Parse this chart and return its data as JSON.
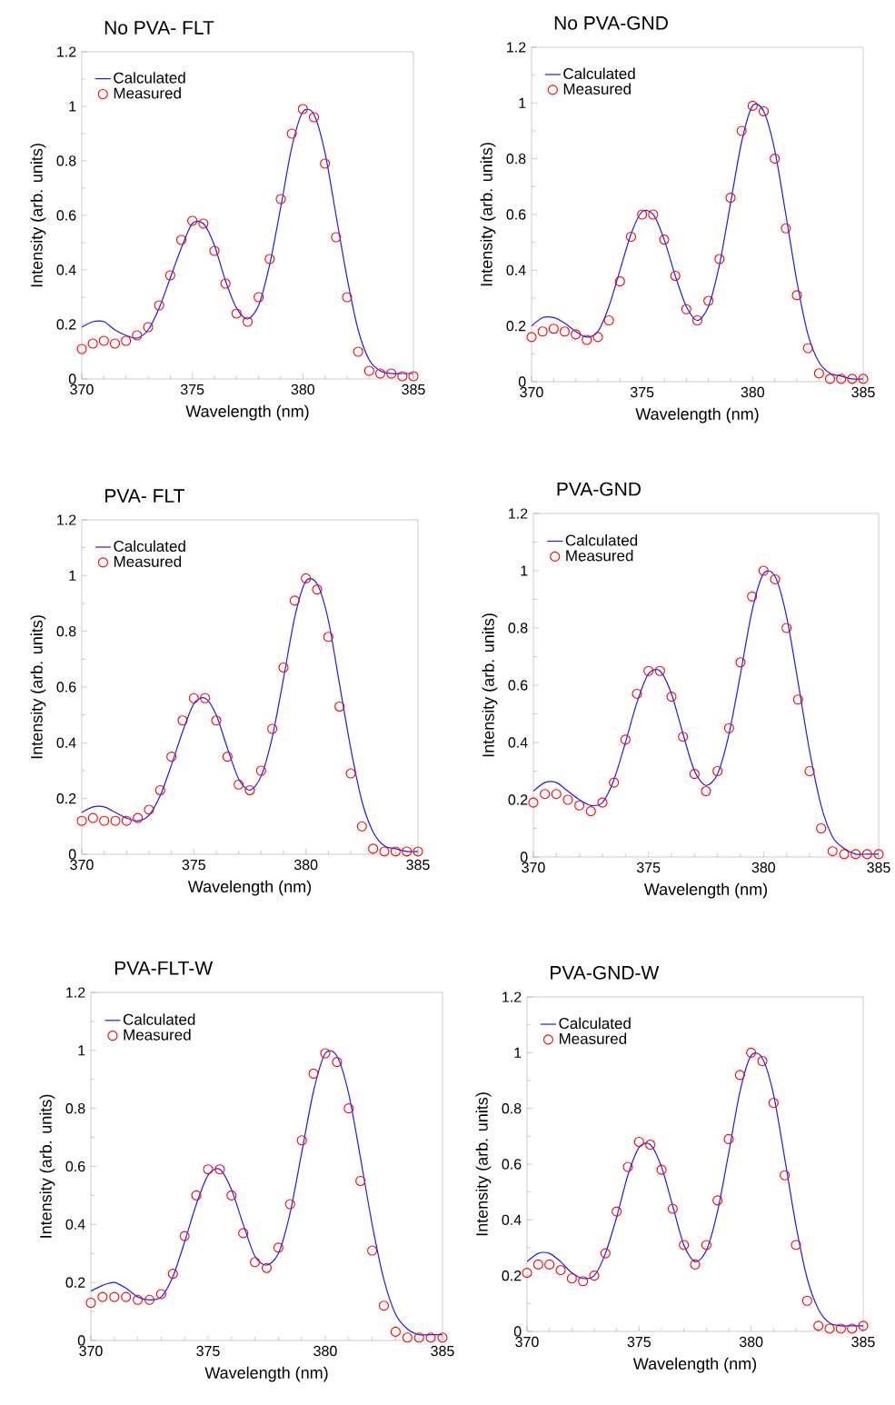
{
  "chart_data": [
    {
      "type": "line",
      "title": "No PVA- FLT",
      "xlabel": "Wavelength (nm)",
      "ylabel": "Intensity (arb. units)",
      "legend": "top left",
      "x": [
        370,
        370.5,
        371,
        371.5,
        372,
        372.5,
        373,
        373.5,
        374,
        374.5,
        375,
        375.5,
        376,
        376.5,
        377,
        377.5,
        378,
        378.5,
        379,
        379.5,
        380,
        380.5,
        381,
        381.5,
        382,
        382.5,
        383,
        383.5,
        384,
        384.5,
        385
      ],
      "xlim": [
        370,
        385
      ],
      "xticks": [
        370,
        375,
        380,
        385
      ],
      "ylim": [
        0,
        1.2
      ],
      "yticks": [
        0,
        0.2,
        0.4,
        0.6,
        0.8,
        1,
        1.2
      ],
      "series": [
        {
          "name": "Calculated",
          "type": "line",
          "marker": "none",
          "color": "#1a1aff",
          "values": [
            0.19,
            0.21,
            0.21,
            0.18,
            0.16,
            0.15,
            0.18,
            0.26,
            0.37,
            0.48,
            0.57,
            0.57,
            0.49,
            0.36,
            0.26,
            0.22,
            0.27,
            0.42,
            0.63,
            0.85,
            0.98,
            0.97,
            0.83,
            0.6,
            0.37,
            0.18,
            0.07,
            0.03,
            0.02,
            0.02,
            0.02
          ]
        },
        {
          "name": "Measured",
          "type": "scatter",
          "marker": "circle",
          "color": "#ff0000",
          "values": [
            0.11,
            0.13,
            0.14,
            0.13,
            0.14,
            0.16,
            0.19,
            0.27,
            0.38,
            0.51,
            0.58,
            0.57,
            0.47,
            0.35,
            0.24,
            0.21,
            0.3,
            0.44,
            0.66,
            0.9,
            0.99,
            0.96,
            0.79,
            0.52,
            0.3,
            0.1,
            0.03,
            0.02,
            0.02,
            0.01,
            0.01
          ]
        }
      ]
    },
    {
      "type": "line",
      "title": "No PVA-GND",
      "xlabel": "Wavelength (nm)",
      "ylabel": "Intensity (arb. units)",
      "legend": "top left",
      "x": [
        370,
        370.5,
        371,
        371.5,
        372,
        372.5,
        373,
        373.5,
        374,
        374.5,
        375,
        375.5,
        376,
        376.5,
        377,
        377.5,
        378,
        378.5,
        379,
        379.5,
        380,
        380.5,
        381,
        381.5,
        382,
        382.5,
        383,
        383.5,
        384,
        384.5,
        385
      ],
      "xlim": [
        370,
        385
      ],
      "xticks": [
        370,
        375,
        380,
        385
      ],
      "ylim": [
        0,
        1.2
      ],
      "yticks": [
        0,
        0.2,
        0.4,
        0.6,
        0.8,
        1,
        1.2
      ],
      "series": [
        {
          "name": "Calculated",
          "type": "line",
          "marker": "none",
          "color": "#1a1aff",
          "values": [
            0.2,
            0.23,
            0.23,
            0.21,
            0.18,
            0.16,
            0.18,
            0.27,
            0.4,
            0.53,
            0.61,
            0.6,
            0.51,
            0.38,
            0.27,
            0.22,
            0.27,
            0.42,
            0.64,
            0.86,
            0.99,
            0.97,
            0.83,
            0.6,
            0.36,
            0.17,
            0.07,
            0.03,
            0.02,
            0.01,
            0.01
          ]
        },
        {
          "name": "Measured",
          "type": "scatter",
          "marker": "circle",
          "color": "#ff0000",
          "values": [
            0.16,
            0.18,
            0.19,
            0.18,
            0.17,
            0.15,
            0.16,
            0.22,
            0.36,
            0.52,
            0.6,
            0.6,
            0.51,
            0.38,
            0.26,
            0.22,
            0.29,
            0.44,
            0.66,
            0.9,
            0.99,
            0.97,
            0.8,
            0.55,
            0.31,
            0.12,
            0.03,
            0.01,
            0.01,
            0.01,
            0.01
          ]
        }
      ]
    },
    {
      "type": "line",
      "title": "PVA- FLT",
      "xlabel": "Wavelength (nm)",
      "ylabel": "Intensity (arb. units)",
      "legend": "top left",
      "x": [
        370,
        370.5,
        371,
        371.5,
        372,
        372.5,
        373,
        373.5,
        374,
        374.5,
        375,
        375.5,
        376,
        376.5,
        377,
        377.5,
        378,
        378.5,
        379,
        379.5,
        380,
        380.5,
        381,
        381.5,
        382,
        382.5,
        383,
        383.5,
        384,
        384.5,
        385
      ],
      "xlim": [
        370,
        385
      ],
      "xticks": [
        370,
        375,
        380,
        385
      ],
      "ylim": [
        0,
        1.2
      ],
      "yticks": [
        0,
        0.2,
        0.4,
        0.6,
        0.8,
        1,
        1.2
      ],
      "series": [
        {
          "name": "Calculated",
          "type": "line",
          "marker": "none",
          "color": "#1a1aff",
          "values": [
            0.15,
            0.17,
            0.17,
            0.15,
            0.13,
            0.12,
            0.14,
            0.21,
            0.32,
            0.44,
            0.54,
            0.56,
            0.5,
            0.38,
            0.27,
            0.23,
            0.28,
            0.42,
            0.63,
            0.85,
            0.98,
            0.97,
            0.84,
            0.61,
            0.38,
            0.19,
            0.08,
            0.03,
            0.02,
            0.01,
            0.01
          ]
        },
        {
          "name": "Measured",
          "type": "scatter",
          "marker": "circle",
          "color": "#ff0000",
          "values": [
            0.12,
            0.13,
            0.12,
            0.12,
            0.12,
            0.13,
            0.16,
            0.23,
            0.35,
            0.48,
            0.56,
            0.56,
            0.48,
            0.35,
            0.25,
            0.23,
            0.3,
            0.45,
            0.67,
            0.91,
            0.99,
            0.95,
            0.78,
            0.53,
            0.29,
            0.1,
            0.02,
            0.01,
            0.01,
            0.01,
            0.01
          ]
        }
      ]
    },
    {
      "type": "line",
      "title": "PVA-GND",
      "xlabel": "Wavelength (nm)",
      "ylabel": "Intensity (arb. units)",
      "legend": "top left",
      "x": [
        370,
        370.5,
        371,
        371.5,
        372,
        372.5,
        373,
        373.5,
        374,
        374.5,
        375,
        375.5,
        376,
        376.5,
        377,
        377.5,
        378,
        378.5,
        379,
        379.5,
        380,
        380.5,
        381,
        381.5,
        382,
        382.5,
        383,
        383.5,
        384,
        384.5,
        385
      ],
      "xlim": [
        370,
        385
      ],
      "xticks": [
        370,
        375,
        380,
        385
      ],
      "ylim": [
        0,
        1.2
      ],
      "yticks": [
        0,
        0.2,
        0.4,
        0.6,
        0.8,
        1,
        1.2
      ],
      "series": [
        {
          "name": "Calculated",
          "type": "line",
          "marker": "none",
          "color": "#1a1aff",
          "values": [
            0.23,
            0.26,
            0.26,
            0.23,
            0.2,
            0.18,
            0.19,
            0.27,
            0.4,
            0.54,
            0.64,
            0.65,
            0.57,
            0.43,
            0.3,
            0.25,
            0.29,
            0.43,
            0.64,
            0.86,
            0.99,
            0.98,
            0.84,
            0.61,
            0.37,
            0.18,
            0.07,
            0.03,
            0.01,
            0.01,
            0.01
          ]
        },
        {
          "name": "Measured",
          "type": "scatter",
          "marker": "circle",
          "color": "#ff0000",
          "values": [
            0.19,
            0.22,
            0.22,
            0.2,
            0.18,
            0.16,
            0.19,
            0.26,
            0.41,
            0.57,
            0.65,
            0.65,
            0.56,
            0.42,
            0.29,
            0.23,
            0.3,
            0.45,
            0.68,
            0.91,
            1.0,
            0.97,
            0.8,
            0.55,
            0.3,
            0.1,
            0.02,
            0.01,
            0.01,
            0.01,
            0.01
          ]
        }
      ]
    },
    {
      "type": "line",
      "title": "PVA-FLT-W",
      "xlabel": "Wavelength (nm)",
      "ylabel": "Intensity (arb. units)",
      "legend": "top left",
      "x": [
        370,
        370.5,
        371,
        371.5,
        372,
        372.5,
        373,
        373.5,
        374,
        374.5,
        375,
        375.5,
        376,
        376.5,
        377,
        377.5,
        378,
        378.5,
        379,
        379.5,
        380,
        380.5,
        381,
        381.5,
        382,
        382.5,
        383,
        383.5,
        384,
        384.5,
        385
      ],
      "xlim": [
        370,
        385
      ],
      "xticks": [
        370,
        375,
        380,
        385
      ],
      "ylim": [
        0,
        1.2
      ],
      "yticks": [
        0,
        0.2,
        0.4,
        0.6,
        0.8,
        1,
        1.2
      ],
      "series": [
        {
          "name": "Calculated",
          "type": "line",
          "marker": "none",
          "color": "#1a1aff",
          "values": [
            0.17,
            0.19,
            0.2,
            0.18,
            0.15,
            0.14,
            0.15,
            0.22,
            0.34,
            0.47,
            0.57,
            0.59,
            0.52,
            0.4,
            0.29,
            0.26,
            0.3,
            0.44,
            0.65,
            0.86,
            0.99,
            0.98,
            0.85,
            0.63,
            0.4,
            0.21,
            0.09,
            0.04,
            0.02,
            0.02,
            0.02
          ]
        },
        {
          "name": "Measured",
          "type": "scatter",
          "marker": "circle",
          "color": "#ff0000",
          "values": [
            0.13,
            0.15,
            0.15,
            0.15,
            0.14,
            0.14,
            0.16,
            0.23,
            0.36,
            0.5,
            0.59,
            0.59,
            0.5,
            0.37,
            0.27,
            0.25,
            0.32,
            0.47,
            0.69,
            0.92,
            0.99,
            0.96,
            0.8,
            0.55,
            0.31,
            0.12,
            0.03,
            0.01,
            0.01,
            0.01,
            0.01
          ]
        }
      ]
    },
    {
      "type": "line",
      "title": "PVA-GND-W",
      "xlabel": "Wavelength (nm)",
      "ylabel": "Intensity (arb. units)",
      "legend": "top left",
      "x": [
        370,
        370.5,
        371,
        371.5,
        372,
        372.5,
        373,
        373.5,
        374,
        374.5,
        375,
        375.5,
        376,
        376.5,
        377,
        377.5,
        378,
        378.5,
        379,
        379.5,
        380,
        380.5,
        381,
        381.5,
        382,
        382.5,
        383,
        383.5,
        384,
        384.5,
        385
      ],
      "xlim": [
        370,
        385
      ],
      "xticks": [
        370,
        375,
        380,
        385
      ],
      "ylim": [
        0,
        1.2
      ],
      "yticks": [
        0,
        0.2,
        0.4,
        0.6,
        0.8,
        1,
        1.2
      ],
      "series": [
        {
          "name": "Calculated",
          "type": "line",
          "marker": "none",
          "color": "#1a1aff",
          "values": [
            0.25,
            0.28,
            0.28,
            0.25,
            0.21,
            0.19,
            0.2,
            0.28,
            0.41,
            0.56,
            0.66,
            0.67,
            0.59,
            0.45,
            0.31,
            0.25,
            0.29,
            0.43,
            0.64,
            0.86,
            0.99,
            0.98,
            0.85,
            0.62,
            0.38,
            0.19,
            0.08,
            0.03,
            0.02,
            0.02,
            0.02
          ]
        },
        {
          "name": "Measured",
          "type": "scatter",
          "marker": "circle",
          "color": "#ff0000",
          "values": [
            0.21,
            0.24,
            0.24,
            0.22,
            0.19,
            0.18,
            0.2,
            0.28,
            0.43,
            0.59,
            0.68,
            0.67,
            0.58,
            0.44,
            0.31,
            0.24,
            0.31,
            0.47,
            0.69,
            0.92,
            1.0,
            0.97,
            0.82,
            0.56,
            0.31,
            0.11,
            0.02,
            0.01,
            0.01,
            0.01,
            0.02
          ]
        }
      ]
    }
  ]
}
